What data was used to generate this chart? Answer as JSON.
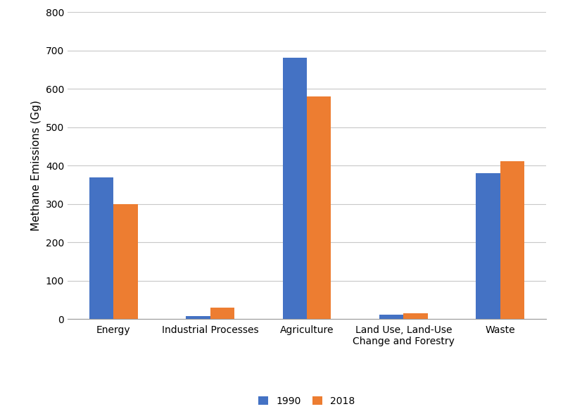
{
  "categories": [
    "Energy",
    "Industrial Processes",
    "Agriculture",
    "Land Use, Land-Use\nChange and Forestry",
    "Waste"
  ],
  "values_1990": [
    370,
    7,
    681,
    12,
    380
  ],
  "values_2018": [
    300,
    30,
    581,
    15,
    412
  ],
  "color_1990": "#4472C4",
  "color_2018": "#ED7D31",
  "ylabel": "Methane Emissions (Gg)",
  "ylim": [
    0,
    800
  ],
  "yticks": [
    0,
    100,
    200,
    300,
    400,
    500,
    600,
    700,
    800
  ],
  "legend_labels": [
    "1990",
    "2018"
  ],
  "bar_width": 0.25,
  "background_color": "#ffffff",
  "grid_color": "#c8c8c8"
}
